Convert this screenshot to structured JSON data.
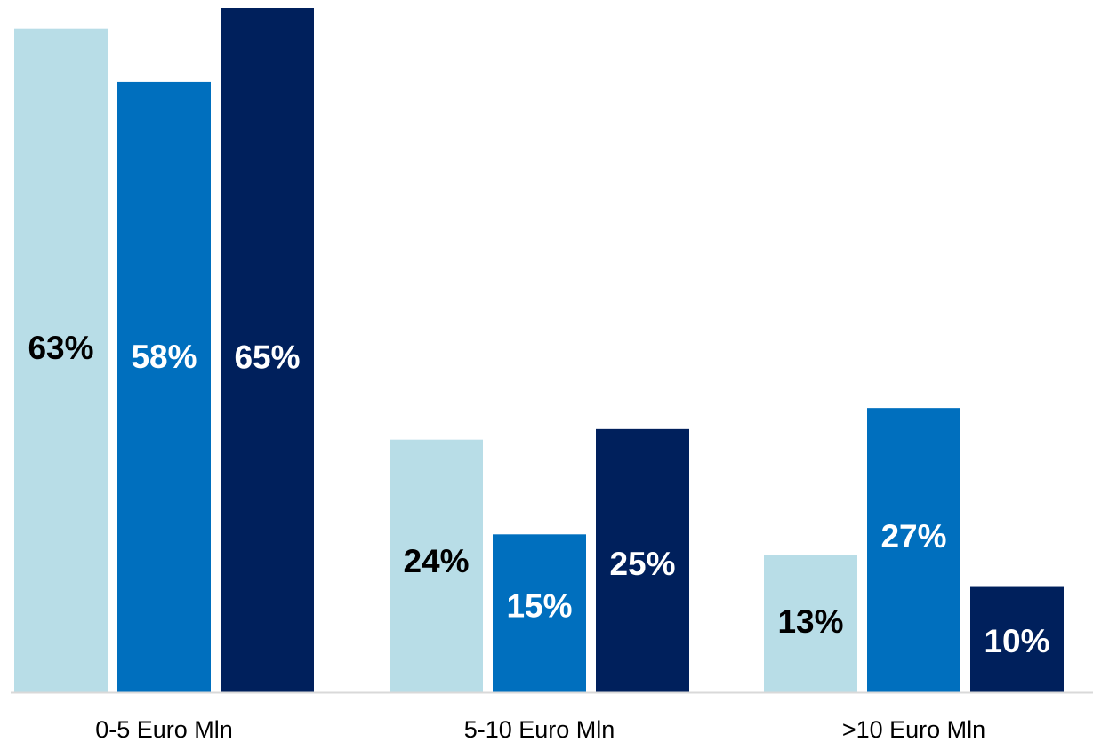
{
  "chart_data": {
    "type": "bar",
    "categories": [
      "0-5 Euro Mln",
      "5-10 Euro Mln",
      ">10 Euro Mln"
    ],
    "series": [
      {
        "values": [
          63,
          24,
          13
        ],
        "labels": [
          "63%",
          "24%",
          "13%"
        ],
        "color": "#B8DDE7",
        "label_color": "#000000"
      },
      {
        "values": [
          58,
          15,
          27
        ],
        "labels": [
          "58%",
          "15%",
          "27%"
        ],
        "color": "#006FBE",
        "label_color": "#FFFFFF"
      },
      {
        "values": [
          65,
          25,
          10
        ],
        "labels": [
          "65%",
          "25%",
          "10%"
        ],
        "color": "#00205C",
        "label_color": "#FFFFFF"
      }
    ],
    "title": "",
    "xlabel": "",
    "ylabel": "",
    "ylim": [
      0,
      65
    ],
    "grid": false,
    "legend": "none",
    "value_format": "percent"
  }
}
